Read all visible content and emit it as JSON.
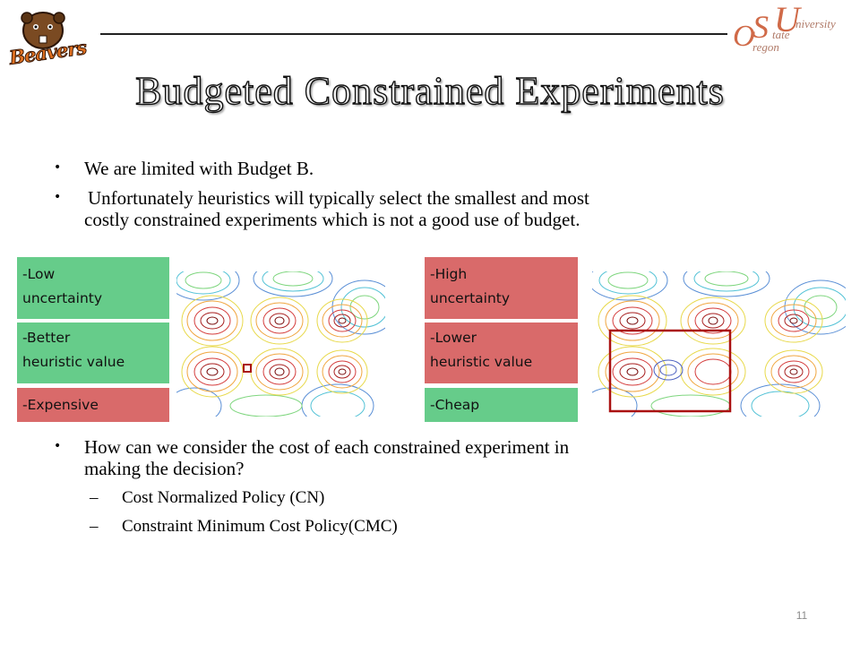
{
  "logos": {
    "left_logo_text": "Beavers",
    "right_logo": {
      "o": "O",
      "s": "S",
      "u": "U",
      "rest_u": "niversity",
      "rest_s": "tate",
      "rest_o": "regon"
    }
  },
  "title": "Budgeted Constrained Experiments",
  "bullets_top": [
    "We are limited with Budget B.",
    "Unfortunately heuristics will typically select the smallest and most",
    "costly constrained experiments which is not a good use of budget."
  ],
  "left_labels": {
    "uncertainty_l1": "-Low",
    "uncertainty_l2": "uncertainty",
    "heuristic_l1": "-Better",
    "heuristic_l2": "heuristic value",
    "cost": "-Expensive"
  },
  "right_labels": {
    "uncertainty_l1": "-High",
    "uncertainty_l2": "uncertainty",
    "heuristic_l1": "-Lower",
    "heuristic_l2": "heuristic value",
    "cost": "-Cheap"
  },
  "bullet_bottom": {
    "line1": "How can we consider the cost of each constrained experiment in",
    "line2": "making the decision?"
  },
  "sub_bullets": [
    "Cost Normalized Policy (CN)",
    "Constraint Minimum Cost Policy(CMC)"
  ],
  "dash": "–",
  "bullet_glyph": "•",
  "page_number": "11",
  "colors": {
    "green_label": "#66cc8a",
    "red_label": "#d96a6a",
    "selection_box": "#aa1111"
  }
}
